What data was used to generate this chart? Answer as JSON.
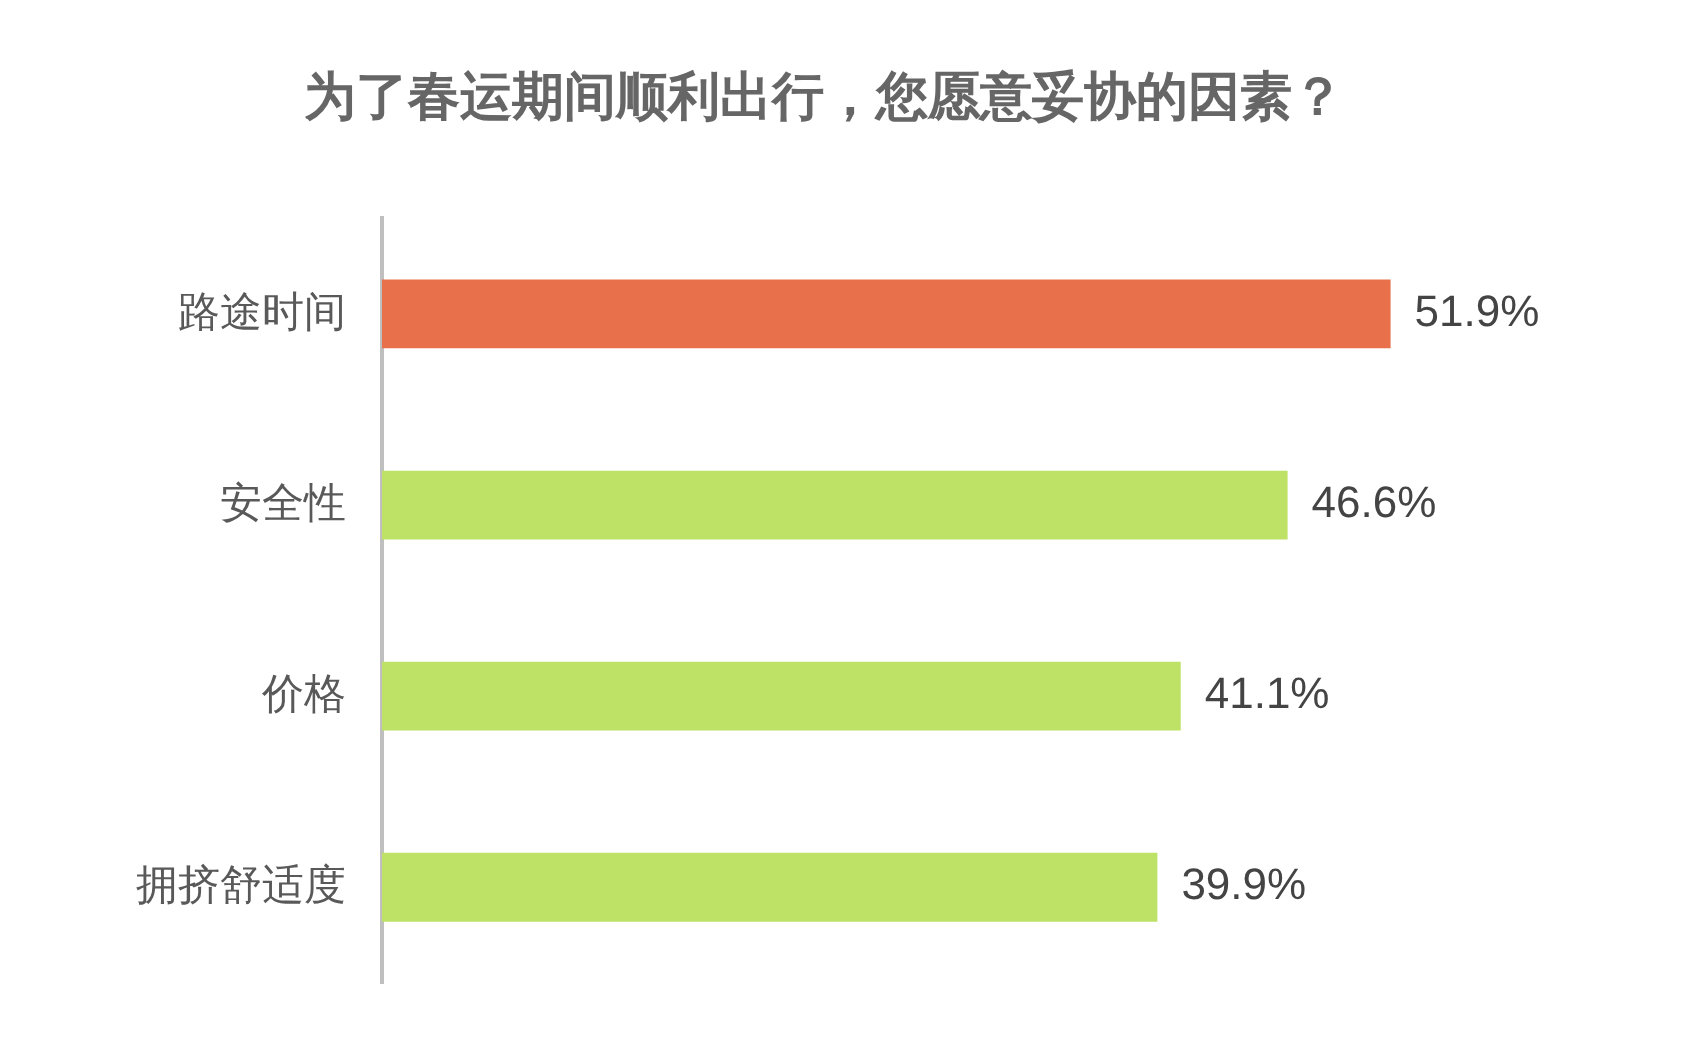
{
  "chart_data": {
    "type": "bar",
    "orientation": "horizontal",
    "title": "为了春运期间顺利出行，您愿意妥协的因素？",
    "categories": [
      "路途时间",
      "安全性",
      "价格",
      "拥挤舒适度"
    ],
    "values": [
      51.9,
      46.6,
      41.1,
      39.9
    ],
    "colors": [
      "#e8704b",
      "#bde265",
      "#bde265",
      "#bde265"
    ],
    "value_labels": [
      "51.9%",
      "46.6%",
      "41.1%",
      "39.9%"
    ],
    "tick_labels": "y",
    "grid": false,
    "legend": false
  }
}
